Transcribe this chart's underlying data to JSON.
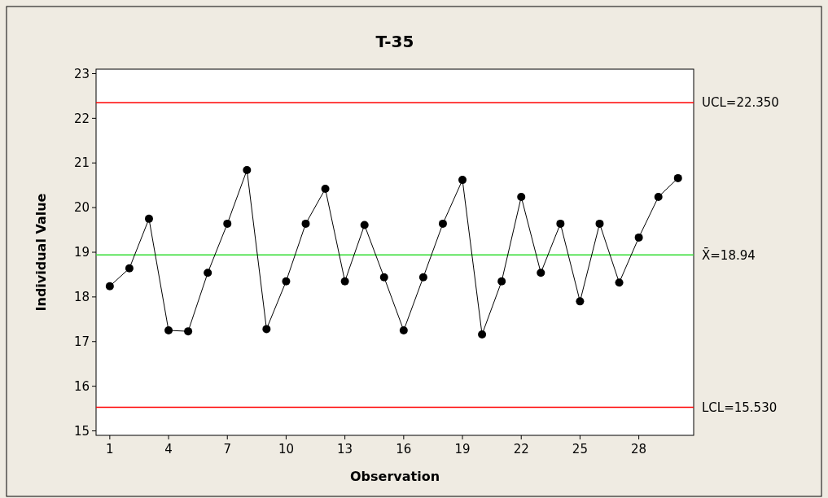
{
  "chart_data": {
    "type": "line",
    "title": "T-35",
    "xlabel": "Observation",
    "ylabel": "Individual Value",
    "x": [
      1,
      2,
      3,
      4,
      5,
      6,
      7,
      8,
      9,
      10,
      11,
      12,
      13,
      14,
      15,
      16,
      17,
      18,
      19,
      20,
      21,
      22,
      23,
      24,
      25,
      26,
      27,
      28,
      29,
      30
    ],
    "series": [
      {
        "color": "#000000",
        "values": [
          18.24,
          18.64,
          19.75,
          17.25,
          17.23,
          18.54,
          19.64,
          20.84,
          17.28,
          18.35,
          19.64,
          20.42,
          18.35,
          19.61,
          18.44,
          17.25,
          18.44,
          19.64,
          20.62,
          17.16,
          18.35,
          20.24,
          18.54,
          19.64,
          17.9,
          19.64,
          18.32,
          19.33,
          20.24,
          20.66
        ]
      }
    ],
    "xlim": [
      0.3,
      30.8
    ],
    "xticks": [
      1,
      4,
      7,
      10,
      13,
      16,
      19,
      22,
      25,
      28
    ],
    "ylim": [
      14.9,
      23.1
    ],
    "yticks": [
      15,
      16,
      17,
      18,
      19,
      20,
      21,
      22,
      23
    ],
    "ref_lines": [
      {
        "axis": "y",
        "value": 22.35,
        "label": "UCL=22.350",
        "color": "#ff0000"
      },
      {
        "axis": "y",
        "value": 18.94,
        "label": "X̄=18.94",
        "color": "#33dd33"
      },
      {
        "axis": "y",
        "value": 15.53,
        "label": "LCL=15.530",
        "color": "#ff0000"
      }
    ],
    "marker": "circle",
    "line_style": "solid",
    "grid": false
  }
}
